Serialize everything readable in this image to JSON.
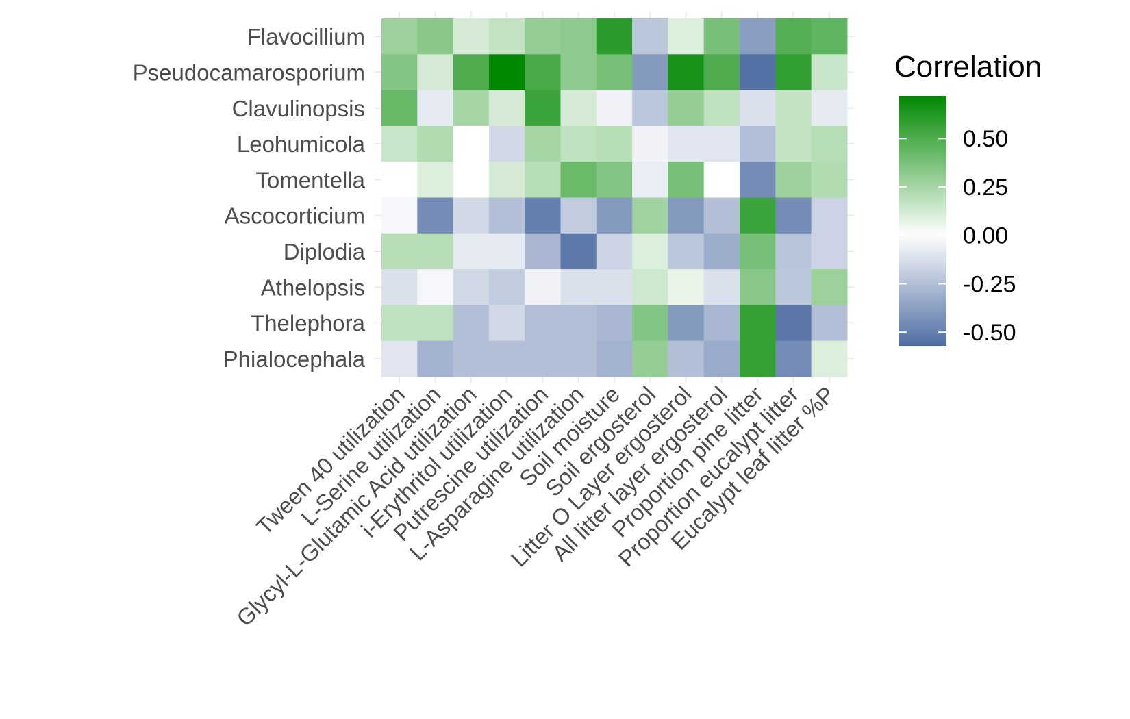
{
  "chart_data": {
    "type": "heatmap",
    "rows": [
      "Flavocillium",
      "Pseudocamarosporium",
      "Clavulinopsis",
      "Leohumicola",
      "Tomentella",
      "Ascocorticium",
      "Diplodia",
      "Athelopsis",
      "Thelephora",
      "Phialocephala"
    ],
    "columns": [
      "Tween 40 utilization",
      "L-Serine utilization",
      "Glycyl-L-Glutamic Acid utilization",
      "i-Erythritol utilization",
      "Putrescine utilization",
      "L-Asparagine utilization",
      "Soil moisture",
      "Soil ergosterol",
      "Litter O Layer ergosterol",
      "All litter layer ergosterol",
      "Proportion pine litter",
      "Proportion eucalypt litter",
      "Eucalypt leaf litter %P"
    ],
    "values": [
      [
        0.28,
        0.33,
        0.12,
        0.17,
        0.3,
        0.32,
        0.6,
        -0.22,
        0.1,
        0.38,
        -0.38,
        0.48,
        0.45
      ],
      [
        0.35,
        0.12,
        0.5,
        0.72,
        0.52,
        0.32,
        0.38,
        -0.4,
        0.65,
        0.5,
        -0.55,
        0.58,
        0.15
      ],
      [
        0.43,
        -0.08,
        0.25,
        0.12,
        0.55,
        0.12,
        -0.05,
        -0.22,
        0.3,
        0.18,
        -0.12,
        0.17,
        -0.08
      ],
      [
        0.15,
        0.22,
        0.0,
        -0.15,
        0.25,
        0.18,
        0.2,
        -0.05,
        -0.1,
        -0.1,
        -0.25,
        0.17,
        0.2
      ],
      [
        0.0,
        0.1,
        0.0,
        0.12,
        0.2,
        0.42,
        0.35,
        -0.07,
        0.38,
        0.0,
        -0.45,
        0.28,
        0.22
      ],
      [
        -0.03,
        -0.45,
        -0.15,
        -0.25,
        -0.5,
        -0.2,
        -0.4,
        0.27,
        -0.4,
        -0.25,
        0.55,
        -0.45,
        -0.17
      ],
      [
        0.2,
        0.2,
        -0.08,
        -0.08,
        -0.28,
        -0.52,
        -0.17,
        0.1,
        -0.22,
        -0.32,
        0.38,
        -0.23,
        -0.17
      ],
      [
        -0.12,
        -0.03,
        -0.15,
        -0.2,
        -0.05,
        -0.12,
        -0.12,
        0.14,
        0.06,
        -0.12,
        0.33,
        -0.22,
        0.28
      ],
      [
        0.18,
        0.18,
        -0.25,
        -0.15,
        -0.25,
        -0.25,
        -0.28,
        0.35,
        -0.4,
        -0.28,
        0.57,
        -0.53,
        -0.25
      ],
      [
        -0.1,
        -0.3,
        -0.25,
        -0.25,
        -0.25,
        -0.25,
        -0.3,
        0.3,
        -0.25,
        -0.33,
        0.57,
        -0.45,
        0.1
      ]
    ],
    "color_scale": {
      "low": "#4f6da3",
      "mid": "#ffffff",
      "high": "#008800",
      "limits": [
        -0.57,
        0.72
      ]
    },
    "legend": {
      "title": "Correlation",
      "ticks": [
        0.5,
        0.25,
        0.0,
        -0.25,
        -0.5
      ],
      "tick_labels": [
        "0.50",
        "0.25",
        "0.00",
        "-0.25",
        "-0.50"
      ],
      "position": "right"
    },
    "title": "",
    "xlabel": "",
    "ylabel": ""
  }
}
